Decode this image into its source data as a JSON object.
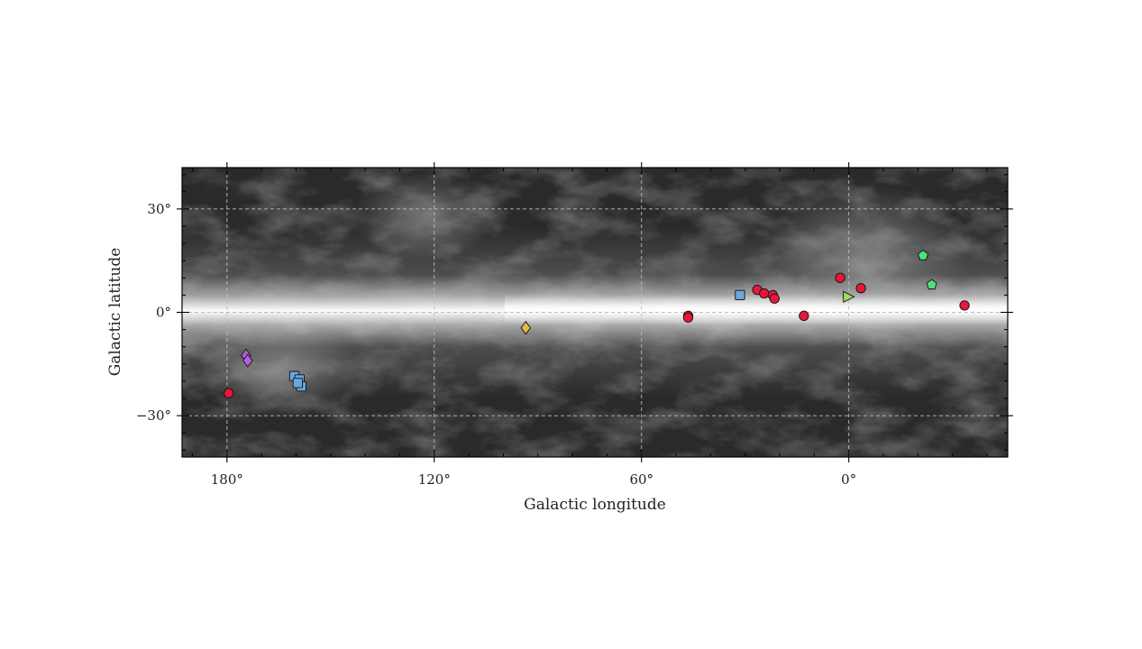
{
  "chart_data": {
    "type": "scatter",
    "background": "all-sky dust map (grayscale), Galactic plane bright band",
    "xlabel": "Galactic longitude",
    "ylabel": "Galactic latitude",
    "x_axis_direction": "decreasing to the right",
    "xlim": [
      193,
      -46
    ],
    "ylim": [
      -42,
      42
    ],
    "xticks": [
      {
        "value": 180,
        "label": "180°"
      },
      {
        "value": 120,
        "label": "120°"
      },
      {
        "value": 60,
        "label": "60°"
      },
      {
        "value": 0,
        "label": "0°"
      }
    ],
    "yticks": [
      {
        "value": 30,
        "label": "30°"
      },
      {
        "value": 0,
        "label": "0°"
      },
      {
        "value": -30,
        "label": "−30°"
      }
    ],
    "grid": true,
    "grid_style": "dashed",
    "series": [
      {
        "marker": "circle",
        "color": "#e5173b",
        "points": [
          {
            "l": 179.5,
            "b": -23.5
          },
          {
            "l": 46.5,
            "b": -1.0
          },
          {
            "l": 46.5,
            "b": -1.5
          },
          {
            "l": 26.5,
            "b": 6.5
          },
          {
            "l": 24.5,
            "b": 5.5
          },
          {
            "l": 22.0,
            "b": 5.0
          },
          {
            "l": 21.5,
            "b": 4.0
          },
          {
            "l": 13.0,
            "b": -1.0
          },
          {
            "l": 2.5,
            "b": 10.0
          },
          {
            "l": -3.5,
            "b": 7.0
          },
          {
            "l": -33.5,
            "b": 2.0
          }
        ]
      },
      {
        "marker": "square",
        "color": "#6ba7dc",
        "points": [
          {
            "l": 160.5,
            "b": -18.5
          },
          {
            "l": 159.0,
            "b": -19.5
          },
          {
            "l": 158.5,
            "b": -21.5
          },
          {
            "l": 159.5,
            "b": -20.5
          },
          {
            "l": 31.5,
            "b": 5.0
          }
        ]
      },
      {
        "marker": "diamond",
        "color": "#b45ee0",
        "points": [
          {
            "l": 174.5,
            "b": -12.5
          },
          {
            "l": 174.0,
            "b": -14.0
          }
        ]
      },
      {
        "marker": "diamond",
        "color": "#e6b84d",
        "points": [
          {
            "l": 93.5,
            "b": -4.5
          }
        ]
      },
      {
        "marker": "triangle-right",
        "color": "#a4d867",
        "points": [
          {
            "l": 0.0,
            "b": 4.5
          }
        ]
      },
      {
        "marker": "pentagon",
        "color": "#4fe07a",
        "points": [
          {
            "l": -21.5,
            "b": 16.5
          },
          {
            "l": -24.0,
            "b": 8.0
          }
        ]
      }
    ]
  },
  "colors": {
    "marker_edge": "#111111",
    "grid": "#bdbdbd",
    "axis": "#000000"
  }
}
